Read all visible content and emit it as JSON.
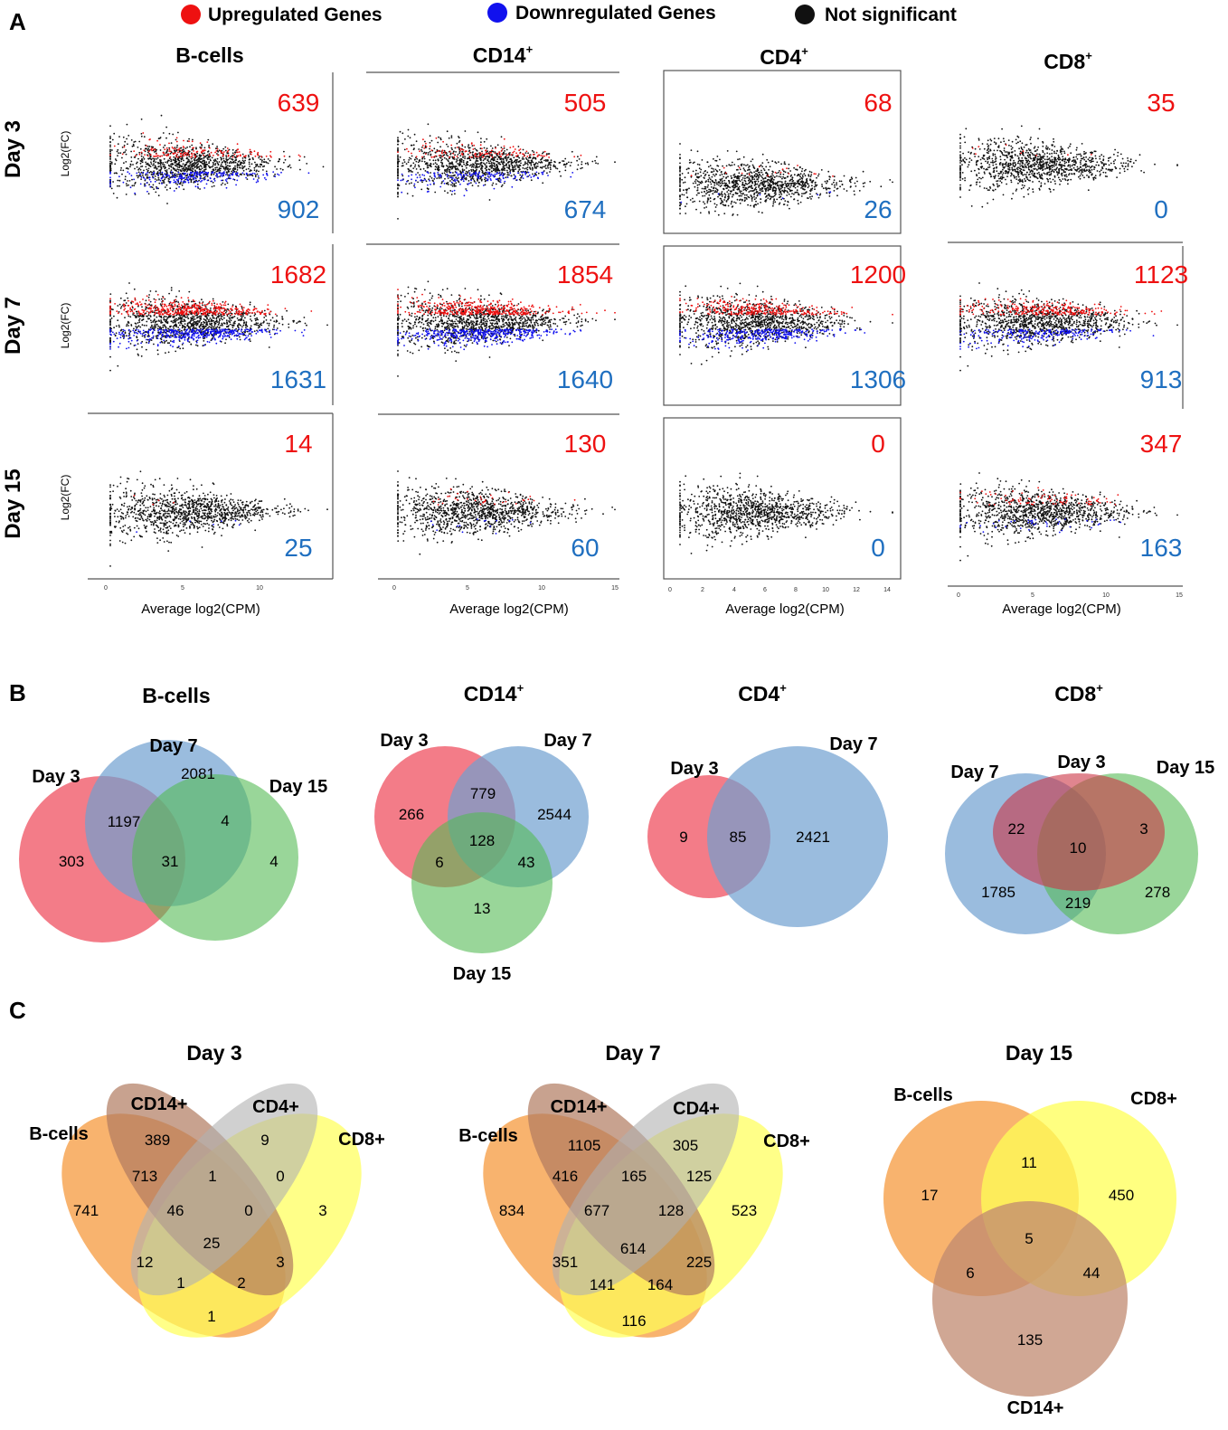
{
  "panel_letters": [
    "A",
    "B",
    "C"
  ],
  "legend": [
    {
      "label": "Upregulated Genes",
      "color": "#ee1111"
    },
    {
      "label": "Downregulated Genes",
      "color": "#1111ee"
    },
    {
      "label": "Not significant",
      "color": "#111111"
    }
  ],
  "colors": {
    "up_count": "#ee1111",
    "down_count": "#1f6fc0"
  },
  "chart_data": [
    {
      "type": "scatter",
      "title": "MA plots of differential expression (log2 fold change vs average log2 CPM)",
      "xlabel": "Average log2(CPM)",
      "ylabel": "Log2(FC)",
      "columns": [
        "B-cells",
        "CD14",
        "CD4",
        "CD8"
      ],
      "rows": [
        "Day 3",
        "Day 7",
        "Day 15"
      ],
      "xlim": [
        0,
        15
      ],
      "counts": {
        "up": [
          [
            639,
            505,
            68,
            35
          ],
          [
            1682,
            1854,
            1200,
            1123
          ],
          [
            14,
            130,
            0,
            347
          ]
        ],
        "down": [
          [
            902,
            674,
            26,
            0
          ],
          [
            1631,
            1640,
            1306,
            913
          ],
          [
            25,
            60,
            0,
            163
          ]
        ]
      }
    },
    {
      "type": "venn",
      "panel": "B",
      "title": "B-cells",
      "sets": [
        "Day 3",
        "Day 7",
        "Day 15"
      ],
      "regions": {
        "Day 3 only": 303,
        "Day 7 only": 2081,
        "Day 15 only": 4,
        "Day 3 & Day 7": 1197,
        "Day 7 & Day 15": 4,
        "Day 3 & Day 7 & Day 15": 31
      }
    },
    {
      "type": "venn",
      "panel": "B",
      "title": "CD14",
      "sets": [
        "Day 3",
        "Day 7",
        "Day 15"
      ],
      "regions": {
        "Day 3 only": 266,
        "Day 7 only": 2544,
        "Day 15 only": 13,
        "Day 3 & Day 7": 779,
        "Day 3 & Day 15": 6,
        "Day 7 & Day 15": 43,
        "Day 3 & Day 7 & Day 15": 128
      }
    },
    {
      "type": "venn",
      "panel": "B",
      "title": "CD4",
      "sets": [
        "Day 3",
        "Day 7"
      ],
      "regions": {
        "Day 3 only": 9,
        "Day 3 & Day 7": 85,
        "Day 7 only": 2421
      }
    },
    {
      "type": "venn",
      "panel": "B",
      "title": "CD8",
      "sets": [
        "Day 7",
        "Day 3",
        "Day 15"
      ],
      "regions": {
        "Day 7 & Day 3": 22,
        "Day 7 & Day 3 & Day 15": 10,
        "Day 3 & Day 15": 3,
        "Day 7 only": 1785,
        "Day 7 & Day 15": 219,
        "Day 15 only": 278
      }
    },
    {
      "type": "venn",
      "panel": "C",
      "title": "Day 3",
      "sets": [
        "B-cells",
        "CD14+",
        "CD4+",
        "CD8+"
      ],
      "regions": {
        "B-cells only": 741,
        "CD14+ only": 389,
        "CD4+ only": 9,
        "CD8+ only": 3,
        "B-cells & CD14+": 713,
        "CD14+ & CD4+": 1,
        "CD4+ & CD8+": 0,
        "B-cells & CD14+ & CD4+": 46,
        "CD14+ & CD4+ & CD8+": 0,
        "all four": 25,
        "B-cells & CD14+ & CD8+": 12,
        "B-cells & CD4+ & CD8+": 3,
        "B-cells & CD4+": 1,
        "CD14+ & CD8+": 2,
        "B-cells & CD8+": 1
      }
    },
    {
      "type": "venn",
      "panel": "C",
      "title": "Day 7",
      "sets": [
        "B-cells",
        "CD14+",
        "CD4+",
        "CD8+"
      ],
      "regions": {
        "B-cells only": 834,
        "CD14+ only": 1105,
        "CD4+ only": 305,
        "CD8+ only": 523,
        "B-cells & CD14+": 416,
        "CD14+ & CD4+": 165,
        "CD4+ & CD8+": 125,
        "B-cells & CD14+ & CD4+": 677,
        "CD14+ & CD4+ & CD8+": 128,
        "all four": 614,
        "B-cells & CD14+ & CD8+": 351,
        "B-cells & CD4+ & CD8+": 225,
        "B-cells & CD4+": 141,
        "CD14+ & CD8+": 164,
        "B-cells & CD8+": 116
      }
    },
    {
      "type": "venn",
      "panel": "C",
      "title": "Day 15",
      "sets": [
        "B-cells",
        "CD8+",
        "CD14+"
      ],
      "regions": {
        "B-cells only": 17,
        "B-cells & CD8+": 11,
        "CD8+ only": 450,
        "all three": 5,
        "B-cells & CD14+": 6,
        "CD8+ & CD14+": 44,
        "CD14+ only": 135
      }
    }
  ],
  "panelA": {
    "column_titles": [
      {
        "text": "B-cells",
        "sup": ""
      },
      {
        "text": "CD14",
        "sup": "+"
      },
      {
        "text": "CD4",
        "sup": "+"
      },
      {
        "text": "CD8",
        "sup": "+"
      }
    ],
    "row_labels": [
      "Day 3",
      "Day 7",
      "Day 15"
    ],
    "xlabel": "Average log2(CPM)",
    "ylabel": "Log2(FC)",
    "x_ticks": [
      [
        "0",
        "5",
        "10"
      ],
      [
        "0",
        "5",
        "10",
        "15"
      ],
      [
        "0",
        "2",
        "4",
        "6",
        "8",
        "10",
        "12",
        "14"
      ],
      [
        "0",
        "5",
        "10",
        "15"
      ]
    ]
  },
  "panelB": {
    "bcells": {
      "title": "B-cells",
      "sup": "",
      "labels": [
        "Day 3",
        "Day 7",
        "Day 15"
      ],
      "nums": [
        "303",
        "1197",
        "31",
        "2081",
        "4",
        "4"
      ]
    },
    "cd14": {
      "title": "CD14",
      "sup": "+",
      "labels": [
        "Day 3",
        "Day 7",
        "Day 15"
      ],
      "nums": [
        "266",
        "779",
        "2544",
        "128",
        "6",
        "43",
        "13"
      ]
    },
    "cd4": {
      "title": "CD4",
      "sup": "+",
      "labels": [
        "Day 3",
        "Day 7"
      ],
      "nums": [
        "9",
        "85",
        "2421"
      ]
    },
    "cd8": {
      "title": "CD8",
      "sup": "+",
      "labels": [
        "Day 7",
        "Day 3",
        "Day 15"
      ],
      "nums": [
        "22",
        "10",
        "3",
        "1785",
        "219",
        "278"
      ]
    }
  },
  "panelC": {
    "day3": {
      "title": "Day 3",
      "labels": [
        "B-cells",
        "CD14+",
        "CD4+",
        "CD8+"
      ],
      "nums": [
        "389",
        "9",
        "713",
        "1",
        "0",
        "741",
        "46",
        "0",
        "3",
        "25",
        "12",
        "3",
        "1",
        "2",
        "1"
      ]
    },
    "day7": {
      "title": "Day 7",
      "labels": [
        "B-cells",
        "CD14+",
        "CD4+",
        "CD8+"
      ],
      "nums": [
        "1105",
        "305",
        "416",
        "165",
        "125",
        "834",
        "677",
        "128",
        "523",
        "614",
        "351",
        "225",
        "141",
        "164",
        "116"
      ]
    },
    "day15": {
      "title": "Day 15",
      "labels": [
        "B-cells",
        "CD8+",
        "CD14+"
      ],
      "nums": [
        "17",
        "11",
        "450",
        "5",
        "6",
        "44",
        "135"
      ]
    }
  }
}
